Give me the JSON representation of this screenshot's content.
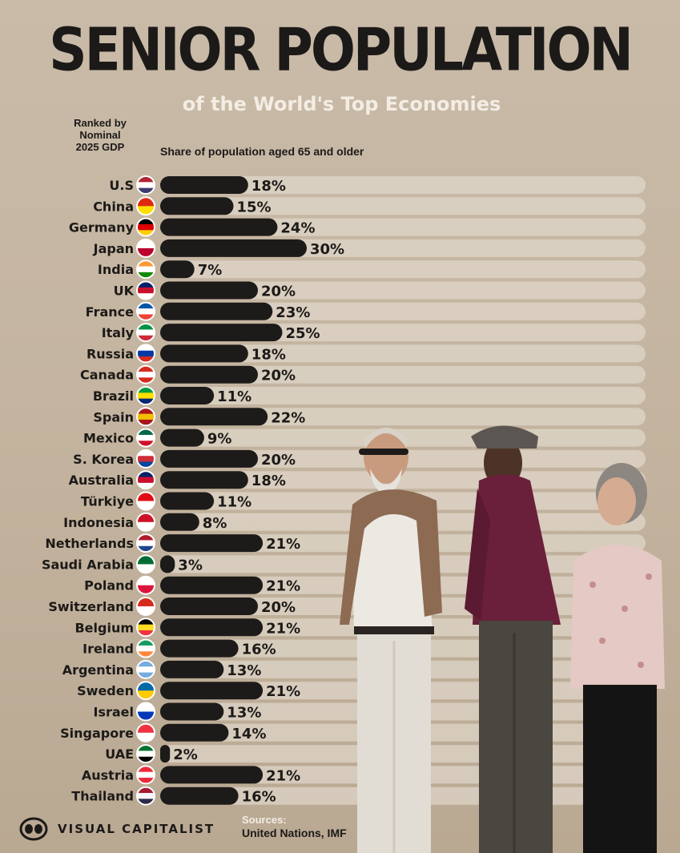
{
  "header": {
    "title": "SENIOR POPULATION",
    "subtitle": "of the World's Top Economies",
    "ranked_note": "Ranked by\nNominal\n2025 GDP",
    "axis_label": "Share of population aged 65 and older"
  },
  "footer": {
    "brand": "VISUAL CAPITALIST",
    "sources_label": "Sources:",
    "sources_text": "United Nations, IMF"
  },
  "colors": {
    "bar": "#1d1b19",
    "track": "#e4dbcf",
    "label_light": "#f3ede4",
    "text_dark": "#1c1a18"
  },
  "chart_data": {
    "type": "bar",
    "orientation": "horizontal",
    "title": "SENIOR POPULATION",
    "subtitle": "of the World's Top Economies",
    "xlabel": "Share of population aged 65 and older",
    "ylabel": "Ranked by Nominal 2025 GDP",
    "unit": "%",
    "xlim": [
      0,
      100
    ],
    "grid": false,
    "categories": [
      "U.S",
      "China",
      "Germany",
      "Japan",
      "India",
      "UK",
      "France",
      "Italy",
      "Russia",
      "Canada",
      "Brazil",
      "Spain",
      "Mexico",
      "S. Korea",
      "Australia",
      "Türkiye",
      "Indonesia",
      "Netherlands",
      "Saudi Arabia",
      "Poland",
      "Switzerland",
      "Belgium",
      "Ireland",
      "Argentina",
      "Sweden",
      "Israel",
      "Singapore",
      "UAE",
      "Austria",
      "Thailand"
    ],
    "values": [
      18,
      15,
      24,
      30,
      7,
      20,
      23,
      25,
      18,
      20,
      11,
      22,
      9,
      20,
      18,
      11,
      8,
      21,
      3,
      21,
      20,
      21,
      16,
      13,
      21,
      13,
      14,
      2,
      21,
      16
    ],
    "value_labels": [
      "18%",
      "15%",
      "24%",
      "30%",
      "7%",
      "20%",
      "23%",
      "25%",
      "18%",
      "20%",
      "11%",
      "22%",
      "9%",
      "20%",
      "18%",
      "11%",
      "8%",
      "21%",
      "3%",
      "21%",
      "20%",
      "21%",
      "16%",
      "13%",
      "21%",
      "13%",
      "14%",
      "2%",
      "21%",
      "16%"
    ],
    "flag_icons": [
      "flag-us-icon",
      "flag-china-icon",
      "flag-germany-icon",
      "flag-japan-icon",
      "flag-india-icon",
      "flag-uk-icon",
      "flag-france-icon",
      "flag-italy-icon",
      "flag-russia-icon",
      "flag-canada-icon",
      "flag-brazil-icon",
      "flag-spain-icon",
      "flag-mexico-icon",
      "flag-south-korea-icon",
      "flag-australia-icon",
      "flag-turkiye-icon",
      "flag-indonesia-icon",
      "flag-netherlands-icon",
      "flag-saudi-arabia-icon",
      "flag-poland-icon",
      "flag-switzerland-icon",
      "flag-belgium-icon",
      "flag-ireland-icon",
      "flag-argentina-icon",
      "flag-sweden-icon",
      "flag-israel-icon",
      "flag-singapore-icon",
      "flag-uae-icon",
      "flag-austria-icon",
      "flag-thailand-icon"
    ]
  }
}
